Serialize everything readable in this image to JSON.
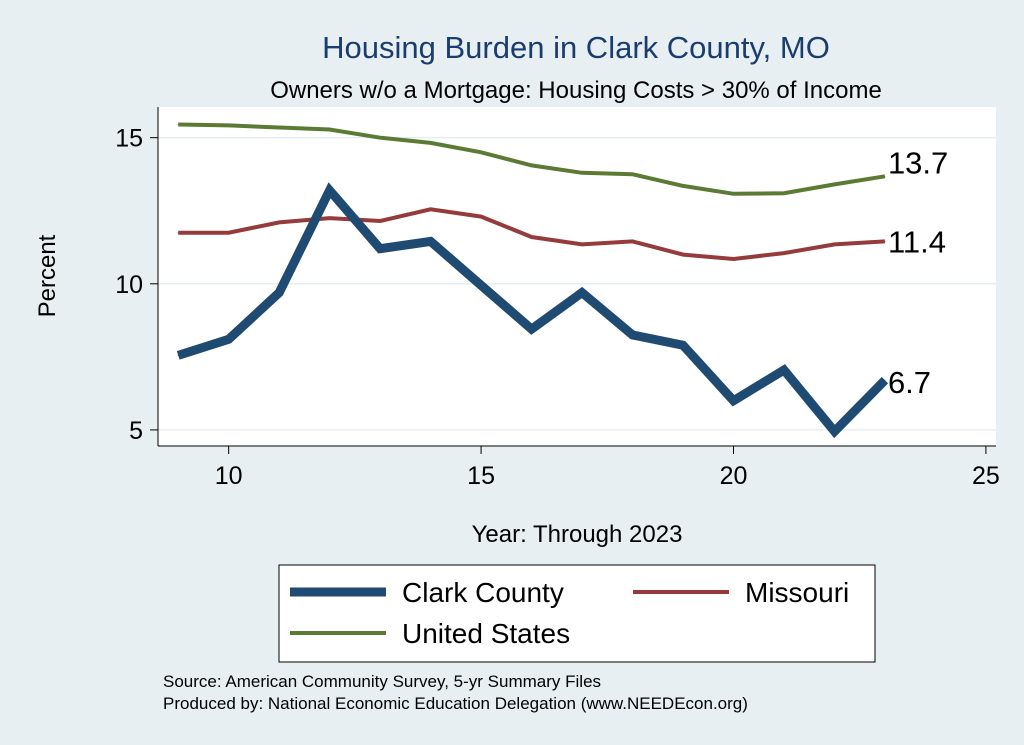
{
  "chart_data": {
    "type": "line",
    "title": "Housing Burden in Clark County, MO",
    "subtitle": "Owners w/o a Mortgage: Housing Costs > 30% of Income",
    "xlabel": "Year: Through 2023",
    "ylabel": "Percent",
    "xlim": [
      8.6,
      25.2
    ],
    "ylim": [
      4.45,
      16.05
    ],
    "xticks": [
      10,
      15,
      20,
      25
    ],
    "yticks": [
      5,
      10,
      15
    ],
    "grid": true,
    "legend_position": "bottom",
    "x": [
      9,
      10,
      11,
      12,
      13,
      14,
      15,
      16,
      17,
      18,
      19,
      20,
      21,
      22,
      23
    ],
    "series": [
      {
        "name": "Clark County",
        "color": "#1f4a72",
        "values": [
          7.55,
          8.1,
          9.7,
          13.2,
          11.2,
          11.45,
          9.95,
          8.45,
          9.7,
          8.25,
          7.9,
          6.0,
          7.05,
          4.95,
          6.7
        ],
        "end_label": "6.7"
      },
      {
        "name": "Missouri",
        "color": "#953b3b",
        "values": [
          11.75,
          11.75,
          12.1,
          12.25,
          12.15,
          12.55,
          12.3,
          11.6,
          11.35,
          11.45,
          11.0,
          10.85,
          11.05,
          11.35,
          11.45
        ],
        "end_label": "11.4"
      },
      {
        "name": "United States",
        "color": "#5b7b35",
        "values": [
          15.45,
          15.42,
          15.35,
          15.28,
          15.0,
          14.82,
          14.5,
          14.05,
          13.8,
          13.75,
          13.35,
          13.08,
          13.1,
          13.4,
          13.68
        ],
        "end_label": "13.7"
      }
    ],
    "notes": [
      "Source: American Community Survey, 5-yr Summary Files",
      "Produced by: National Economic Education Delegation (www.NEEDEcon.org)"
    ]
  }
}
